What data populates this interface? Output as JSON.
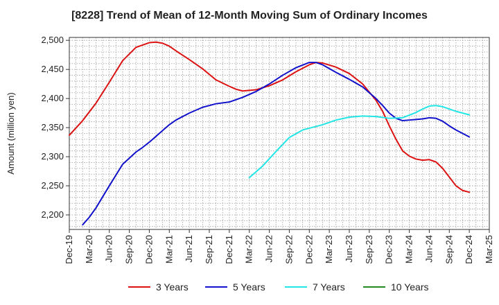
{
  "chart_data": {
    "type": "line",
    "title": "[8228]  Trend of Mean of 12-Month Moving Sum of Ordinary Incomes",
    "xlabel": "",
    "ylabel": "Amount (million yen)",
    "ylim": [
      2175,
      2505
    ],
    "yticks": [
      2200,
      2250,
      2300,
      2350,
      2400,
      2450,
      2500
    ],
    "ytick_labels": [
      "2,200",
      "2,250",
      "2,300",
      "2,350",
      "2,400",
      "2,450",
      "2,500"
    ],
    "x_index_range": [
      0,
      63
    ],
    "xticks": [
      0,
      3,
      6,
      9,
      12,
      15,
      18,
      21,
      24,
      27,
      30,
      33,
      36,
      39,
      42,
      45,
      48,
      51,
      54,
      57,
      60,
      63
    ],
    "xtick_labels": [
      "Dec-19",
      "Mar-20",
      "Jun-20",
      "Sep-20",
      "Dec-20",
      "Mar-21",
      "Jun-21",
      "Sep-21",
      "Dec-21",
      "Mar-22",
      "Jun-22",
      "Sep-22",
      "Dec-22",
      "Mar-23",
      "Jun-23",
      "Sep-23",
      "Dec-23",
      "Mar-24",
      "Jun-24",
      "Sep-24",
      "Dec-24",
      "Mar-25"
    ],
    "grid": true,
    "legend_position": "bottom",
    "series": [
      {
        "name": "3 Years",
        "color": "#dd1111",
        "x": [
          0,
          2,
          4,
          6,
          8,
          10,
          12,
          13,
          14,
          15,
          16,
          18,
          20,
          22,
          24,
          25,
          26,
          27,
          28,
          30,
          32,
          34,
          36,
          37,
          38,
          40,
          42,
          44,
          46,
          47,
          48,
          49,
          50,
          51,
          52,
          53,
          54,
          55,
          56,
          57,
          58,
          59,
          60
        ],
        "y": [
          2337,
          2362,
          2392,
          2428,
          2465,
          2488,
          2496,
          2497,
          2495,
          2490,
          2482,
          2467,
          2451,
          2432,
          2421,
          2416,
          2413,
          2414,
          2415,
          2422,
          2432,
          2446,
          2458,
          2462,
          2461,
          2454,
          2443,
          2425,
          2397,
          2378,
          2353,
          2330,
          2310,
          2301,
          2296,
          2294,
          2295,
          2291,
          2280,
          2265,
          2250,
          2242,
          2239
        ]
      },
      {
        "name": "5 Years",
        "color": "#1111cc",
        "x": [
          2,
          3,
          4,
          6,
          8,
          10,
          11,
          12,
          13,
          14,
          15,
          16,
          18,
          20,
          22,
          24,
          26,
          28,
          30,
          32,
          34,
          36,
          37,
          38,
          40,
          42,
          44,
          46,
          47,
          48,
          49,
          50,
          51,
          52,
          53,
          54,
          55,
          56,
          57,
          58,
          59,
          60
        ],
        "y": [
          2183,
          2196,
          2212,
          2250,
          2287,
          2308,
          2316,
          2325,
          2335,
          2345,
          2355,
          2363,
          2375,
          2385,
          2391,
          2394,
          2402,
          2412,
          2425,
          2440,
          2453,
          2462,
          2462,
          2458,
          2445,
          2433,
          2420,
          2400,
          2388,
          2375,
          2366,
          2362,
          2363,
          2364,
          2365,
          2367,
          2366,
          2361,
          2353,
          2346,
          2340,
          2334
        ]
      },
      {
        "name": "7 Years",
        "color": "#22e5e5",
        "x": [
          27,
          29,
          31,
          33,
          35,
          36,
          38,
          40,
          42,
          44,
          46,
          48,
          50,
          52,
          53,
          54,
          55,
          56,
          58,
          60
        ],
        "y": [
          2264,
          2284,
          2309,
          2333,
          2346,
          2349,
          2355,
          2363,
          2368,
          2370,
          2369,
          2366,
          2367,
          2376,
          2382,
          2387,
          2388,
          2386,
          2378,
          2372
        ]
      },
      {
        "name": "10 Years",
        "color": "#228822",
        "x": [],
        "y": []
      }
    ]
  }
}
